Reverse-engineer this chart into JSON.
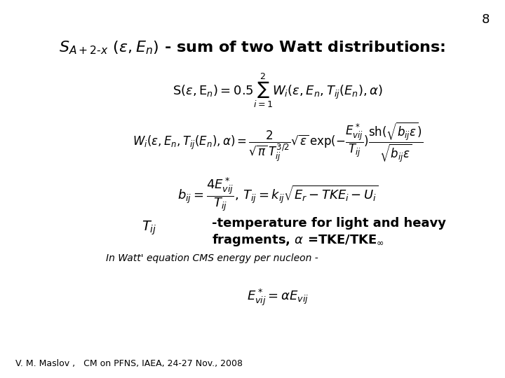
{
  "page_number": "8",
  "title_math": "$S_{A+2\\text{-}x}$ $(\\varepsilon, E_n)$ - sum of two Watt distributions:",
  "eq1": "$\\mathrm{S}(\\varepsilon, \\mathrm{E}_n) = 0.5\\displaystyle\\sum_{i=1}^{2} W_i(\\varepsilon, E_n, T_{ij}(E_n), \\alpha)$",
  "eq2": "$W_i(\\varepsilon, E_n, T_{ij}(E_n), \\alpha) = \\dfrac{2}{\\sqrt{\\pi} T_{ij}^{3/2}} \\sqrt{\\varepsilon}\\, \\exp(-\\dfrac{E^*_{vij}}{T_{ij}}) \\dfrac{\\mathrm{sh}(\\sqrt{b_{ij}\\varepsilon})}{\\sqrt{b_{ij}\\varepsilon}}$",
  "eq3": "$b_{ij} = \\dfrac{4E^*_{vij}}{T_{ij}},\\, T_{ij} = k_{ij}\\sqrt{E_r - TKE_i - U_i}$",
  "label_T": "$T_{ij}$",
  "text_T": "-temperature for light and heavy\nfragments, $\\alpha$ =TKE/TKE$_{\\infty}$",
  "note": "In Watt' equation CMS energy per nucleon -",
  "eq4": "$E^*_{vij} = \\alpha E_{vij}$",
  "footer": "V. M. Maslov ,   CM on PFNS, IAEA, 24-27 Nov., 2008",
  "bg_color": "#ffffff",
  "text_color": "#000000"
}
